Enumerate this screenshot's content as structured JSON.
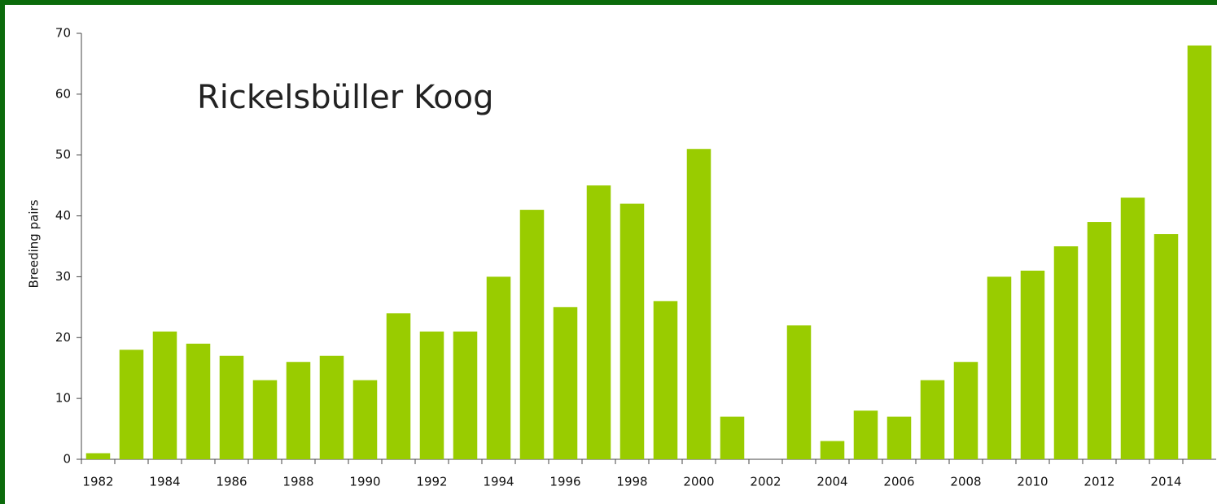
{
  "chart_data": {
    "type": "bar",
    "title": "Rickelsbüller Koog",
    "y_label": "Breeding pairs",
    "categories": [
      "1982",
      null,
      "1984",
      null,
      "1986",
      null,
      "1988",
      null,
      "1990",
      null,
      "1992",
      null,
      "1994",
      null,
      "1996",
      null,
      "1998",
      null,
      "2000",
      null,
      "2002",
      null,
      "2004",
      null,
      "2006",
      null,
      "2008",
      null,
      "2010",
      null,
      "2012",
      null,
      "2014",
      null
    ],
    "values": [
      1,
      18,
      21,
      19,
      17,
      13,
      16,
      17,
      13,
      24,
      21,
      21,
      30,
      41,
      25,
      45,
      42,
      26,
      51,
      7,
      0,
      22,
      3,
      8,
      7,
      13,
      16,
      30,
      31,
      35,
      39,
      43,
      37,
      68
    ],
    "color": "#99cc00",
    "ylim": [
      0,
      70
    ],
    "yticks": [
      0,
      10,
      20,
      30,
      40,
      50,
      60,
      70
    ]
  }
}
